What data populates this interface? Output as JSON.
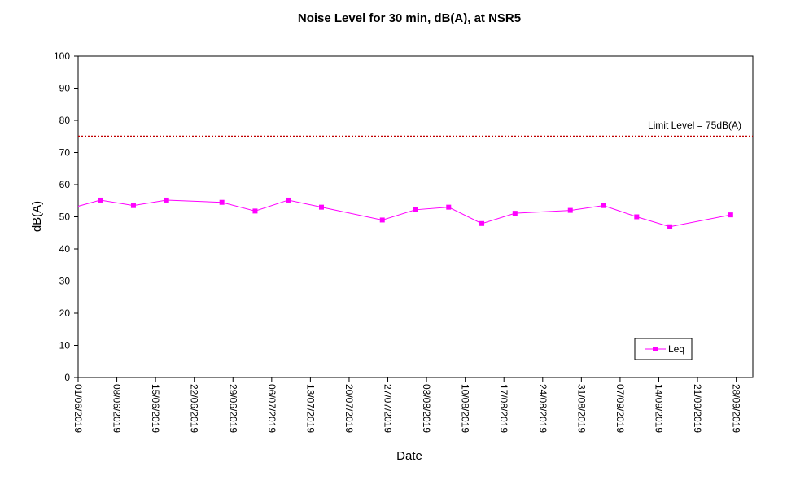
{
  "chart_data": {
    "type": "line",
    "title": "Noise Level for 30 min, dB(A), at NSR5",
    "x_label": "Date",
    "y_label": "dB(A)",
    "x": [
      "01/06/2019",
      "05/06/2019",
      "11/06/2019",
      "17/06/2019",
      "27/06/2019",
      "03/07/2019",
      "09/07/2019",
      "15/07/2019",
      "26/07/2019",
      "01/08/2019",
      "07/08/2019",
      "13/08/2019",
      "19/08/2019",
      "29/08/2019",
      "04/09/2019",
      "10/09/2019",
      "16/09/2019",
      "27/09/2019"
    ],
    "series": [
      {
        "name": "Leq",
        "color": "#ff00ff",
        "values": [
          53.3,
          55.2,
          53.5,
          55.2,
          54.5,
          51.8,
          55.2,
          53,
          49,
          52.2,
          53,
          47.9,
          51.1,
          52,
          53.5,
          50,
          46.9,
          50.6
        ]
      }
    ],
    "limit": {
      "value": 75,
      "label": "Limit Level  = 75dB(A)",
      "color": "#c00000"
    },
    "xlim": [
      "01/06/2019",
      "01/10/2019"
    ],
    "xticks": [
      "01/06/2019",
      "08/06/2019",
      "15/06/2019",
      "22/06/2019",
      "29/06/2019",
      "06/07/2019",
      "13/07/2019",
      "20/07/2019",
      "27/07/2019",
      "03/08/2019",
      "10/08/2019",
      "17/08/2019",
      "24/08/2019",
      "31/08/2019",
      "07/09/2019",
      "14/09/2019",
      "21/09/2019",
      "28/09/2019"
    ],
    "ylim": [
      0,
      100
    ],
    "yticks": [
      0,
      10,
      20,
      30,
      40,
      50,
      60,
      70,
      80,
      90,
      100
    ],
    "legend": "lower right"
  }
}
